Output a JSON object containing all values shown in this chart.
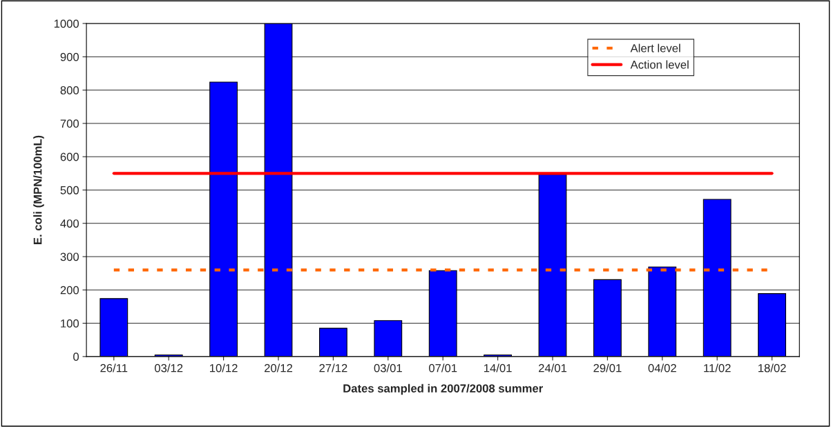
{
  "chart_data": {
    "type": "bar",
    "xlabel": "Dates sampled in 2007/2008 summer",
    "ylabel": "E. coli (MPN/100mL)",
    "categories": [
      "26/11",
      "03/12",
      "10/12",
      "20/12",
      "27/12",
      "03/01",
      "07/01",
      "14/01",
      "24/01",
      "29/01",
      "04/02",
      "11/02",
      "18/02"
    ],
    "values": [
      174,
      5,
      824,
      1000,
      85,
      108,
      258,
      5,
      547,
      231,
      269,
      472,
      189
    ],
    "color": "#0000ff",
    "ylim": [
      0,
      1000
    ],
    "yticks": [
      0,
      100,
      200,
      300,
      400,
      500,
      600,
      700,
      800,
      900,
      1000
    ],
    "grid": "y",
    "legend": "top right",
    "ref_lines": [
      {
        "axis": "y",
        "value": 260,
        "label": "Alert level",
        "color": "#ff6600",
        "line_style": "dashed"
      },
      {
        "axis": "y",
        "value": 550,
        "label": "Action level",
        "color": "#ff0000",
        "line_style": "solid"
      }
    ]
  }
}
